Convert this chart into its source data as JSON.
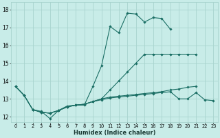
{
  "xlabel": "Humidex (Indice chaleur)",
  "bg_color": "#c8ece8",
  "grid_color": "#a8d4ce",
  "line_color": "#1a6e64",
  "xlim_min": -0.5,
  "xlim_max": 23.5,
  "ylim_min": 11.7,
  "ylim_max": 18.4,
  "xticks": [
    0,
    1,
    2,
    3,
    4,
    5,
    6,
    7,
    8,
    9,
    10,
    11,
    12,
    13,
    14,
    15,
    16,
    17,
    18,
    19,
    20,
    21,
    22,
    23
  ],
  "yticks": [
    12,
    13,
    14,
    15,
    16,
    17,
    18
  ],
  "line1_x": [
    0,
    1,
    2,
    3,
    4,
    5,
    6,
    7,
    8,
    9,
    10,
    11,
    12,
    13,
    14,
    15,
    16,
    17,
    18
  ],
  "line1_y": [
    13.7,
    13.2,
    12.4,
    12.3,
    11.9,
    12.35,
    12.6,
    12.65,
    12.65,
    13.7,
    14.85,
    17.05,
    16.7,
    17.8,
    17.75,
    17.3,
    17.55,
    17.5,
    16.9
  ],
  "line2_x": [
    0,
    1,
    2,
    3,
    4,
    5,
    6,
    7,
    8,
    9,
    10,
    11,
    12,
    13,
    14,
    15,
    16,
    17,
    18,
    19,
    20,
    21
  ],
  "line2_y": [
    13.7,
    13.2,
    12.4,
    12.25,
    12.2,
    12.35,
    12.55,
    12.65,
    12.7,
    12.85,
    13.0,
    13.1,
    13.15,
    13.2,
    13.25,
    13.3,
    13.35,
    13.4,
    13.5,
    13.55,
    13.65,
    13.7
  ],
  "line3_x": [
    2,
    3,
    4,
    5,
    6,
    7,
    8,
    9,
    10,
    11,
    12,
    13,
    14,
    15,
    16,
    17,
    18,
    19,
    20,
    21,
    22,
    23
  ],
  "line3_y": [
    12.4,
    12.25,
    12.2,
    12.35,
    12.55,
    12.65,
    12.7,
    12.85,
    12.95,
    13.05,
    13.1,
    13.15,
    13.2,
    13.25,
    13.3,
    13.35,
    13.4,
    13.0,
    13.0,
    13.35,
    12.95,
    12.9
  ],
  "line4_x": [
    0,
    1,
    2,
    3,
    4,
    5,
    6,
    7,
    8,
    9,
    10,
    11,
    12,
    13,
    14,
    15,
    16,
    17,
    18,
    19,
    20,
    21
  ],
  "line4_y": [
    13.7,
    13.2,
    12.4,
    12.25,
    12.2,
    12.35,
    12.55,
    12.65,
    12.7,
    12.85,
    13.0,
    13.5,
    14.0,
    14.5,
    15.0,
    15.5,
    15.5,
    15.5,
    15.5,
    15.5,
    15.5,
    15.5
  ]
}
